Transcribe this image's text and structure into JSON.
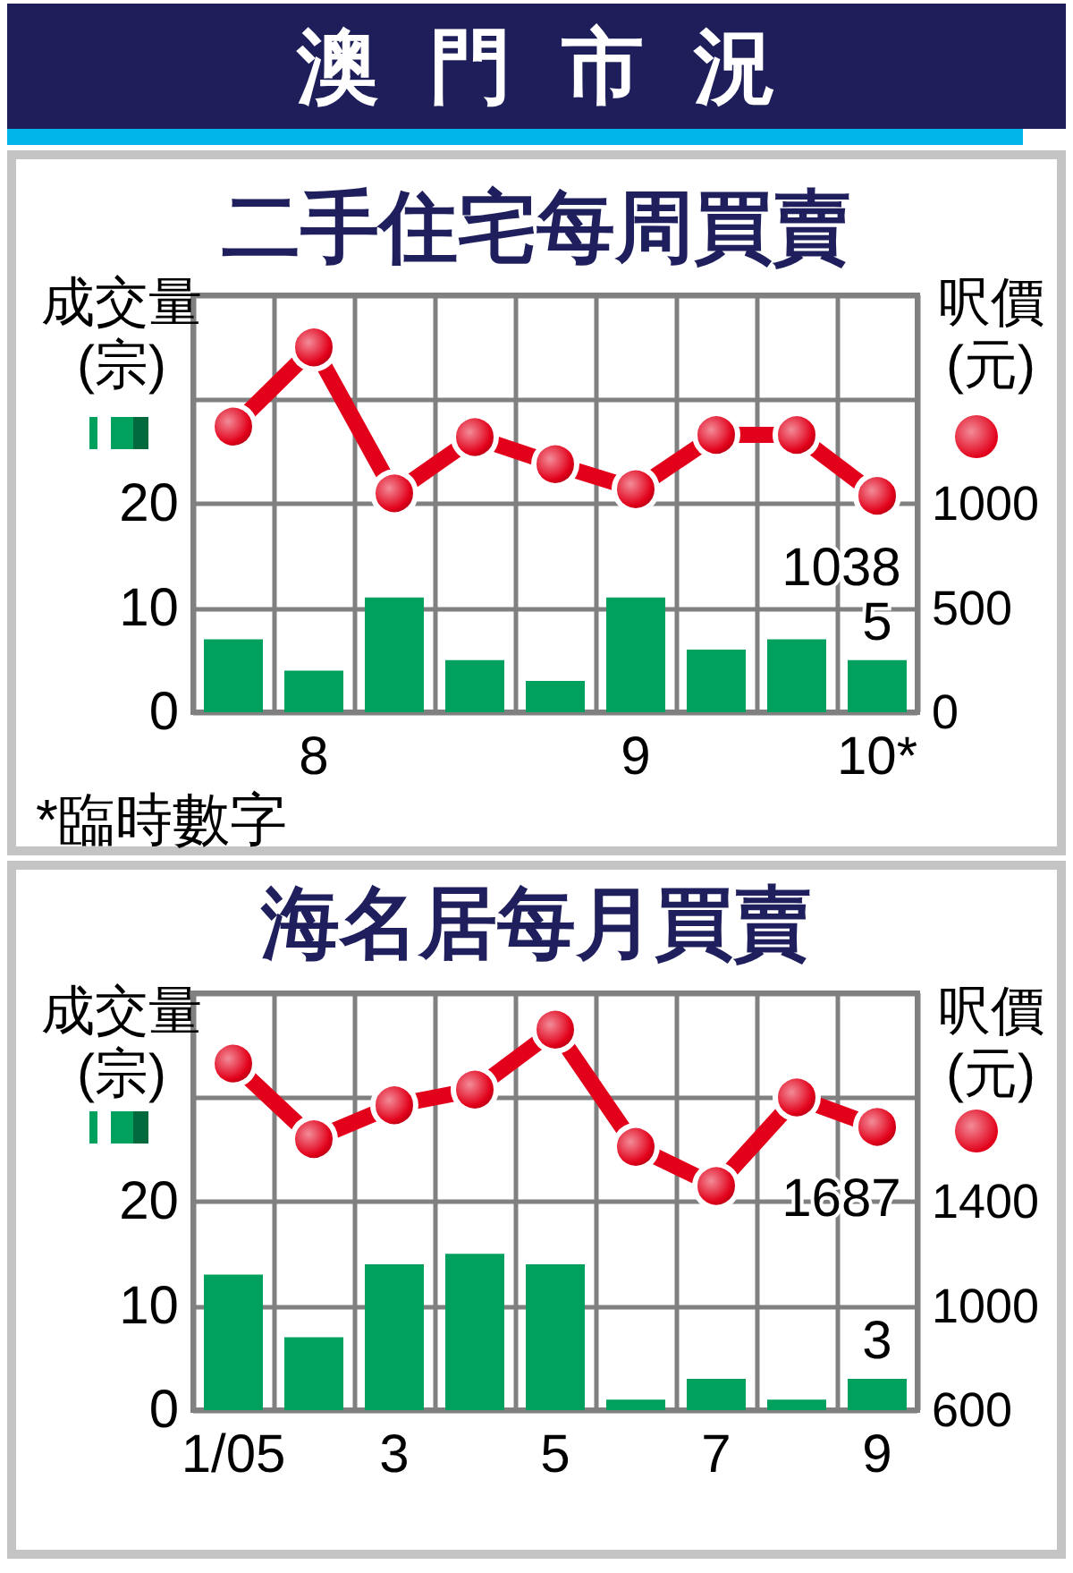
{
  "chart_data": [
    {
      "type": "bar",
      "title": "澳門市況",
      "subtitle": "二手住宅每周買賣",
      "ylabel": "成交量(宗)",
      "y2label": "呎價(元)",
      "annotations": [
        "*臨時數字"
      ],
      "categories": [
        null,
        "8",
        null,
        null,
        null,
        "9",
        null,
        null,
        "10*"
      ],
      "series": [
        {
          "color": "#00a15e",
          "values": [
            7,
            4,
            11,
            5,
            3,
            11,
            6,
            7,
            5
          ],
          "value_labels": [
            null,
            null,
            null,
            null,
            null,
            null,
            null,
            null,
            "5"
          ]
        },
        {
          "type": "line",
          "axis": "y2",
          "color": "#e2001a",
          "values": [
            1370,
            1750,
            1050,
            1320,
            1190,
            1070,
            1330,
            1330,
            1038
          ],
          "value_labels": [
            null,
            null,
            null,
            null,
            null,
            null,
            null,
            null,
            "1038"
          ]
        }
      ],
      "ylim": [
        0,
        40
      ],
      "yticks": [
        0,
        10,
        20
      ],
      "y2lim": [
        0,
        2000
      ],
      "y2ticks": [
        0,
        500,
        1000
      ],
      "grid": true,
      "marker": "circle",
      "line_style": "solid"
    },
    {
      "type": "bar",
      "title": "海名居每月買賣",
      "ylabel": "成交量(宗)",
      "y2label": "呎價(元)",
      "categories": [
        "1/05",
        null,
        "3",
        null,
        "5",
        null,
        "7",
        null,
        "9"
      ],
      "series": [
        {
          "color": "#00a15e",
          "values": [
            13,
            7,
            14,
            15,
            14,
            1,
            3,
            1,
            3
          ],
          "value_labels": [
            null,
            null,
            null,
            null,
            null,
            null,
            null,
            null,
            "3"
          ]
        },
        {
          "type": "line",
          "axis": "y2",
          "color": "#e2001a",
          "values": [
            1930,
            1640,
            1770,
            1830,
            2060,
            1610,
            1460,
            1800,
            1687
          ],
          "value_labels": [
            null,
            null,
            null,
            null,
            null,
            null,
            null,
            null,
            "1687"
          ]
        }
      ],
      "ylim": [
        0,
        40
      ],
      "yticks": [
        0,
        10,
        20
      ],
      "y2lim": [
        600,
        2200
      ],
      "y2ticks": [
        600,
        1000,
        1400
      ],
      "grid": true,
      "marker": "circle",
      "line_style": "solid"
    }
  ]
}
